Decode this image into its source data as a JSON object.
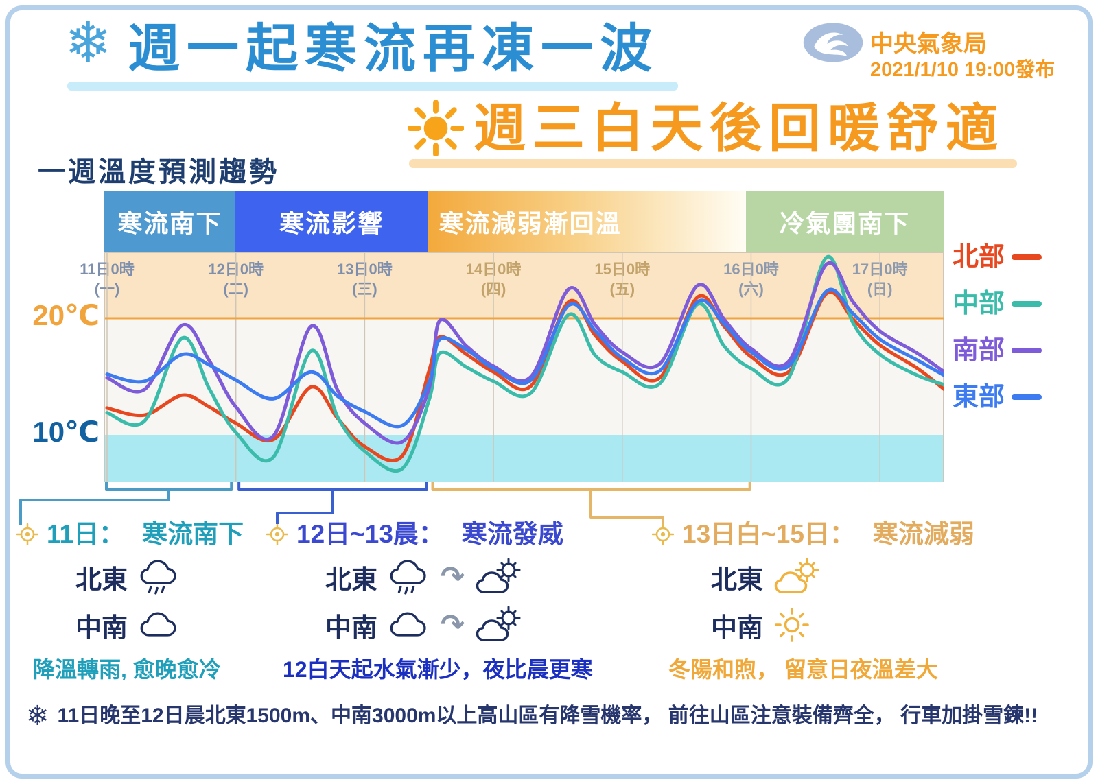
{
  "header": {
    "title_cold": "週一起寒流再凍一波",
    "title_warm": "週三白天後回暖舒適",
    "agency_name": "中央氣象局",
    "issue_time": "2021/1/10 19:00發布"
  },
  "chart_caption": "一週溫度預測趨勢",
  "colors": {
    "title_cold": "#2b8ed2",
    "title_cold_underline": "#c9ecfa",
    "title_warm": "#f59a1e",
    "title_warm_underline": "#fbdfb2",
    "agency_text": "#f59a1e",
    "caption": "#1e3e70",
    "frame": "#b5d0eb",
    "snowflake": "#49a5dc",
    "sun": "#f7a41a",
    "footer_text": "#27366d",
    "region_label": "#1c2d5e",
    "arrow": "#8a97aa",
    "plot_bg": "#f7f6f3",
    "grid": "#cfc6b8",
    "band_above20": "#fbe4c3",
    "band_below10": "#abe9f2",
    "line20": "#f2a43c",
    "logo_blue": "#a9bedd"
  },
  "chart_data": {
    "type": "line",
    "title": "一週溫度預測趨勢",
    "x_axis": {
      "unit": "hours from 2021-01-11 00:00",
      "range_hours": [
        0,
        156
      ],
      "ticks": [
        {
          "hour": 0,
          "label": "11日0時",
          "weekday": "(一)",
          "color": "#7e8fae"
        },
        {
          "hour": 24,
          "label": "12日0時",
          "weekday": "(二)",
          "color": "#7e8fae"
        },
        {
          "hour": 48,
          "label": "13日0時",
          "weekday": "(三)",
          "color": "#7e8fae"
        },
        {
          "hour": 72,
          "label": "14日0時",
          "weekday": "(四)",
          "color": "#c2a36c"
        },
        {
          "hour": 96,
          "label": "15日0時",
          "weekday": "(五)",
          "color": "#c2a36c"
        },
        {
          "hour": 120,
          "label": "16日0時",
          "weekday": "(六)",
          "color": "#8d99ae"
        },
        {
          "hour": 144,
          "label": "17日0時",
          "weekday": "(日)",
          "color": "#8d99ae"
        }
      ]
    },
    "y_axis": {
      "range_c": [
        6.5,
        25.6
      ],
      "labels": [
        {
          "value": 20,
          "text": "20℃",
          "color": "#f1a33c"
        },
        {
          "value": 10,
          "text": "10℃",
          "color": "#1261a0"
        }
      ]
    },
    "regime_bands": [
      {
        "label": "寒流南下",
        "color": "#4e9ad0",
        "from_hour": 0,
        "to_hour": 24.4
      },
      {
        "label": "寒流影響",
        "color": "#3e63ee",
        "from_hour": 24.4,
        "to_hour": 60.3
      },
      {
        "label": "寒流減弱漸回溫",
        "color": "#f3a93c",
        "gradient_to": "#fffdf4",
        "align": "left",
        "from_hour": 60.3,
        "to_hour": 119.6
      },
      {
        "label": "冷氣團南下",
        "color": "#b7d6a3",
        "from_hour": 119.6,
        "to_hour": 156
      }
    ],
    "shaded_zones": [
      {
        "name": "above-20c",
        "color": "#fbe4c3",
        "from_c": 20,
        "to_c": 25.6
      },
      {
        "name": "below-10c",
        "color": "#abe9f2",
        "from_c": 6.5,
        "to_c": 10
      }
    ],
    "series": [
      {
        "id": "north",
        "name": "北部",
        "color": "#e8481f",
        "points": [
          [
            0,
            12.3
          ],
          [
            7,
            11.7
          ],
          [
            14,
            13.4
          ],
          [
            19,
            12.4
          ],
          [
            24,
            11.0
          ],
          [
            31,
            9.6
          ],
          [
            38,
            14.1
          ],
          [
            43,
            11.4
          ],
          [
            48,
            9.0
          ],
          [
            55,
            8.2
          ],
          [
            60,
            15.5
          ],
          [
            62,
            18.4
          ],
          [
            67,
            16.9
          ],
          [
            72,
            15.4
          ],
          [
            79,
            14.2
          ],
          [
            86,
            21.4
          ],
          [
            91,
            18.5
          ],
          [
            96,
            16.3
          ],
          [
            103,
            14.9
          ],
          [
            110,
            21.8
          ],
          [
            115,
            19.3
          ],
          [
            120,
            16.7
          ],
          [
            127,
            15.4
          ],
          [
            134,
            22.1
          ],
          [
            139,
            19.9
          ],
          [
            144,
            17.7
          ],
          [
            151,
            15.7
          ],
          [
            156,
            13.9
          ]
        ]
      },
      {
        "id": "central",
        "name": "中部",
        "color": "#3bbcab",
        "points": [
          [
            0,
            11.9
          ],
          [
            7,
            11.2
          ],
          [
            14,
            18.3
          ],
          [
            19,
            14.0
          ],
          [
            24,
            10.2
          ],
          [
            31,
            8.1
          ],
          [
            38,
            17.2
          ],
          [
            43,
            11.5
          ],
          [
            48,
            8.6
          ],
          [
            55,
            7.1
          ],
          [
            60,
            13.0
          ],
          [
            62,
            17.0
          ],
          [
            67,
            15.8
          ],
          [
            72,
            14.6
          ],
          [
            79,
            13.6
          ],
          [
            86,
            20.3
          ],
          [
            91,
            16.8
          ],
          [
            96,
            15.4
          ],
          [
            103,
            14.4
          ],
          [
            110,
            21.2
          ],
          [
            115,
            17.6
          ],
          [
            120,
            15.7
          ],
          [
            127,
            14.9
          ],
          [
            134,
            25.2
          ],
          [
            139,
            19.6
          ],
          [
            144,
            16.9
          ],
          [
            151,
            15.1
          ],
          [
            156,
            14.3
          ]
        ]
      },
      {
        "id": "south",
        "name": "南部",
        "color": "#7e5bd8",
        "points": [
          [
            0,
            14.9
          ],
          [
            7,
            13.9
          ],
          [
            14,
            19.4
          ],
          [
            19,
            16.4
          ],
          [
            24,
            12.4
          ],
          [
            31,
            9.9
          ],
          [
            38,
            19.3
          ],
          [
            43,
            13.8
          ],
          [
            48,
            11.0
          ],
          [
            55,
            9.4
          ],
          [
            60,
            14.0
          ],
          [
            62,
            19.8
          ],
          [
            67,
            17.6
          ],
          [
            72,
            15.9
          ],
          [
            79,
            15.0
          ],
          [
            86,
            22.5
          ],
          [
            91,
            19.4
          ],
          [
            96,
            17.1
          ],
          [
            103,
            16.1
          ],
          [
            110,
            22.8
          ],
          [
            115,
            19.9
          ],
          [
            120,
            17.4
          ],
          [
            127,
            16.3
          ],
          [
            134,
            24.6
          ],
          [
            139,
            21.4
          ],
          [
            144,
            18.9
          ],
          [
            151,
            17.0
          ],
          [
            156,
            15.4
          ]
        ]
      },
      {
        "id": "east",
        "name": "東部",
        "color": "#3d7cf0",
        "points": [
          [
            0,
            15.2
          ],
          [
            7,
            14.6
          ],
          [
            14,
            16.9
          ],
          [
            19,
            16.0
          ],
          [
            24,
            14.7
          ],
          [
            31,
            13.1
          ],
          [
            38,
            15.4
          ],
          [
            43,
            13.3
          ],
          [
            48,
            12.0
          ],
          [
            55,
            10.8
          ],
          [
            60,
            14.5
          ],
          [
            62,
            18.2
          ],
          [
            67,
            17.3
          ],
          [
            72,
            15.7
          ],
          [
            79,
            14.7
          ],
          [
            86,
            21.1
          ],
          [
            91,
            18.9
          ],
          [
            96,
            16.6
          ],
          [
            103,
            15.5
          ],
          [
            110,
            21.4
          ],
          [
            115,
            19.5
          ],
          [
            120,
            17.1
          ],
          [
            127,
            15.9
          ],
          [
            134,
            22.3
          ],
          [
            139,
            20.4
          ],
          [
            144,
            18.2
          ],
          [
            151,
            16.4
          ],
          [
            156,
            15.1
          ]
        ]
      }
    ]
  },
  "annotations": [
    {
      "title_prefix": "11日：",
      "title_main": "寒流南下",
      "title_color": "#1f9fba",
      "bullet_color": "#e9ba4e",
      "icon_color": "#1c2d5e",
      "rows": [
        {
          "region": "北東",
          "icons": [
            "rain-cloud"
          ]
        },
        {
          "region": "中南",
          "icons": [
            "cloud"
          ]
        }
      ],
      "note": "降溫轉雨, 愈晚愈冷",
      "note_color": "#1f9fba",
      "bracket": {
        "from_hour": 0,
        "to_hour": 23.3,
        "color": "#4a9cc7"
      }
    },
    {
      "title_prefix": "12日~13晨：",
      "title_main": "寒流發威",
      "title_color": "#3a49d0",
      "bullet_color": "#e9ba4e",
      "icon_color": "#1c2d5e",
      "rows": [
        {
          "region": "北東",
          "icons": [
            "rain-cloud",
            "arrow",
            "sun-cloud"
          ]
        },
        {
          "region": "中南",
          "icons": [
            "cloud",
            "arrow",
            "sun-cloud"
          ]
        }
      ],
      "note": "12白天起水氣漸少，夜比晨更寒",
      "note_color": "#1b2fc0",
      "bracket": {
        "from_hour": 24.7,
        "to_hour": 59.7,
        "color": "#3a5fd0"
      }
    },
    {
      "title_prefix": "13日白~15日：",
      "title_main": "寒流減弱",
      "title_color": "#e2ab5e",
      "bullet_color": "#e9ba4e",
      "icon_color": "#f0b23c",
      "rows": [
        {
          "region": "北東",
          "icons": [
            "sun-cloud"
          ]
        },
        {
          "region": "中南",
          "icons": [
            "sun"
          ]
        }
      ],
      "note": "冬陽和煦， 留意日夜溫差大",
      "note_color": "#f0a838",
      "bracket": {
        "from_hour": 60.8,
        "to_hour": 119.9,
        "color": "#e5b668"
      }
    }
  ],
  "footer": {
    "text": "11日晚至12日晨北東1500m、中南3000m以上高山區有降雪機率， 前往山區注意裝備齊全， 行車加掛雪鍊!!"
  }
}
